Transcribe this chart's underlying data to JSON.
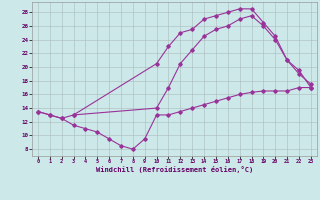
{
  "xlabel": "Windchill (Refroidissement éolien,°C)",
  "bg_color": "#cce8e8",
  "line_color": "#993399",
  "xlim": [
    -0.5,
    23.5
  ],
  "ylim": [
    7.0,
    29.5
  ],
  "xticks": [
    0,
    1,
    2,
    3,
    4,
    5,
    6,
    7,
    8,
    9,
    10,
    11,
    12,
    13,
    14,
    15,
    16,
    17,
    18,
    19,
    20,
    21,
    22,
    23
  ],
  "yticks": [
    8,
    10,
    12,
    14,
    16,
    18,
    20,
    22,
    24,
    26,
    28
  ],
  "line1_x": [
    0,
    1,
    2,
    3,
    4,
    5,
    6,
    7,
    8,
    9,
    10,
    11,
    12,
    13,
    14,
    15,
    16,
    17,
    18,
    19,
    20,
    21,
    22,
    23
  ],
  "line1_y": [
    13.5,
    13.0,
    12.5,
    11.5,
    11.0,
    10.5,
    9.5,
    8.5,
    8.0,
    9.5,
    13.0,
    13.0,
    13.5,
    14.0,
    14.5,
    15.0,
    15.5,
    16.0,
    16.3,
    16.5,
    16.5,
    16.5,
    17.0,
    17.0
  ],
  "line2_x": [
    0,
    1,
    2,
    3,
    10,
    11,
    12,
    13,
    14,
    15,
    16,
    17,
    18,
    19,
    20,
    21,
    22,
    23
  ],
  "line2_y": [
    13.5,
    13.0,
    12.5,
    13.0,
    20.5,
    23.0,
    25.0,
    25.5,
    27.0,
    27.5,
    28.0,
    28.5,
    28.5,
    26.5,
    24.5,
    21.0,
    19.5,
    17.0
  ],
  "line3_x": [
    3,
    10,
    11,
    12,
    13,
    14,
    15,
    16,
    17,
    18,
    19,
    20,
    21,
    22,
    23
  ],
  "line3_y": [
    13.0,
    14.0,
    17.0,
    20.5,
    22.5,
    24.5,
    25.5,
    26.0,
    27.0,
    27.5,
    26.0,
    24.0,
    21.0,
    19.0,
    17.5
  ]
}
